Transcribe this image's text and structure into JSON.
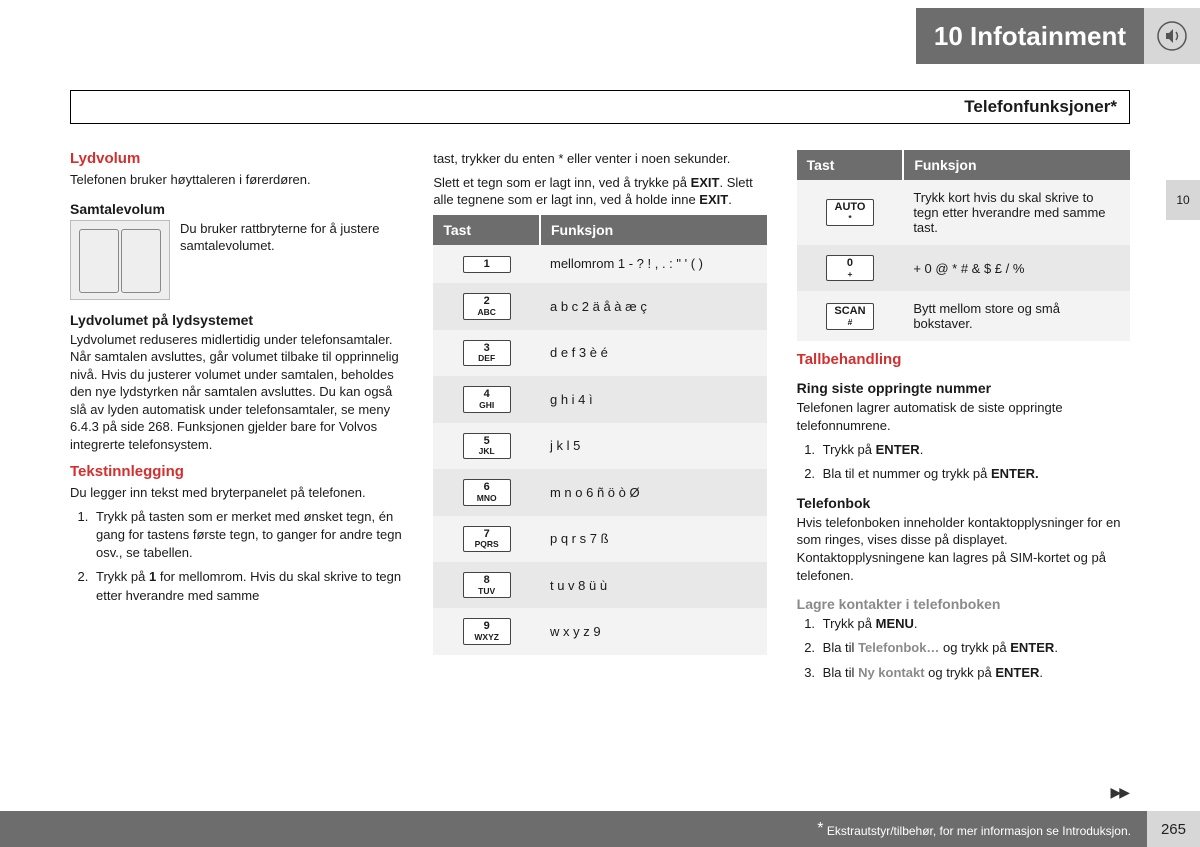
{
  "header": {
    "chapter": "10 Infotainment",
    "subheader": "Telefonfunksjoner*",
    "side_tab": "10",
    "page_number": "265",
    "footnote_marker": "*",
    "footnote": "Ekstrautstyr/tilbehør, for mer informasjon se Introduksjon."
  },
  "col1": {
    "h_lydvolum": "Lydvolum",
    "p_lydvolum": "Telefonen bruker høyttaleren i førerdøren.",
    "h_samtale": "Samtalevolum",
    "p_samtale": "Du bruker rattbryterne for å justere samtalevolumet.",
    "h_lydsys": "Lydvolumet på lydsystemet",
    "p_lydsys": "Lydvolumet reduseres midlertidig under telefonsamtaler. Når samtalen avsluttes, går volumet tilbake til opprinnelig nivå. Hvis du justerer volumet under samtalen, beholdes den nye lydstyrken når samtalen avsluttes. Du kan også slå av lyden automatisk under telefonsamtaler, se meny 6.4.3 på side 268. Funksjonen gjelder bare for Volvos integrerte telefonsystem.",
    "h_tekst": "Tekstinnlegging",
    "p_tekst": "Du legger inn tekst med bryterpanelet på telefonen.",
    "li1_a": "Trykk på tasten som er merket med ønsket tegn, én gang for tastens første tegn, to ganger for andre tegn osv., se tabellen.",
    "li2_pre": "Trykk på ",
    "li2_b": "1",
    "li2_post": " for mellomrom. Hvis du skal skrive to tegn etter hverandre med samme"
  },
  "col2": {
    "p_cont": "tast, trykker du enten * eller venter i noen sekunder.",
    "p_slett_pre": "Slett et tegn som er lagt inn, ved å trykke på ",
    "p_slett_exit1": "EXIT",
    "p_slett_mid": ". Slett alle tegnene som er lagt inn, ved å holde inne ",
    "p_slett_exit2": "EXIT",
    "p_slett_post": ".",
    "th_tast": "Tast",
    "th_funk": "Funksjon",
    "rows": [
      {
        "num": "1",
        "letters": "",
        "fn": "mellomrom 1 - ? ! , . : \" ' ( )"
      },
      {
        "num": "2",
        "letters": "ABC",
        "fn": "a b c 2 ä å à æ ç"
      },
      {
        "num": "3",
        "letters": "DEF",
        "fn": "d e f 3 è é"
      },
      {
        "num": "4",
        "letters": "GHI",
        "fn": "g h i 4 ì"
      },
      {
        "num": "5",
        "letters": "JKL",
        "fn": "j k l 5"
      },
      {
        "num": "6",
        "letters": "MNO",
        "fn": "m n o 6 ñ ö ò Ø"
      },
      {
        "num": "7",
        "letters": "PQRS",
        "fn": "p q r s 7 ß"
      },
      {
        "num": "8",
        "letters": "TUV",
        "fn": "t u v 8 ü ù"
      },
      {
        "num": "9",
        "letters": "WXYZ",
        "fn": "w x y z 9"
      }
    ]
  },
  "col3": {
    "th_tast": "Tast",
    "th_funk": "Funksjon",
    "rows": [
      {
        "num": "AUTO",
        "letters": "*",
        "fn": "Trykk kort hvis du skal skrive to tegn etter hverandre med samme tast."
      },
      {
        "num": "0",
        "letters": "+",
        "fn": "+ 0 @ * # & $ £ / %"
      },
      {
        "num": "SCAN",
        "letters": "#",
        "fn": "Bytt mellom store og små bokstaver."
      }
    ],
    "h_tall": "Tallbehandling",
    "h_ring": "Ring siste oppringte nummer",
    "p_ring": "Telefonen lagrer automatisk de siste oppringte telefonnumrene.",
    "r_li1_pre": "Trykk på ",
    "r_li1_b": "ENTER",
    "r_li1_post": ".",
    "r_li2_pre": "Bla til et nummer og trykk på ",
    "r_li2_b": "ENTER.",
    "h_tbok": "Telefonbok",
    "p_tbok": "Hvis telefonboken inneholder kontaktopplysninger for en som ringes, vises disse på displayet. Kontaktopplysningene kan lagres på SIM-kortet og på telefonen.",
    "h_lagre": "Lagre kontakter i telefonboken",
    "l_li1_pre": "Trykk på ",
    "l_li1_b": "MENU",
    "l_li1_post": ".",
    "l_li2_pre": "Bla til ",
    "l_li2_hl": "Telefonbok…",
    "l_li2_mid": " og trykk på ",
    "l_li2_b": "ENTER",
    "l_li2_post": ".",
    "l_li3_pre": "Bla til ",
    "l_li3_hl": "Ny kontakt",
    "l_li3_mid": " og trykk på ",
    "l_li3_b": "ENTER",
    "l_li3_post": "."
  }
}
